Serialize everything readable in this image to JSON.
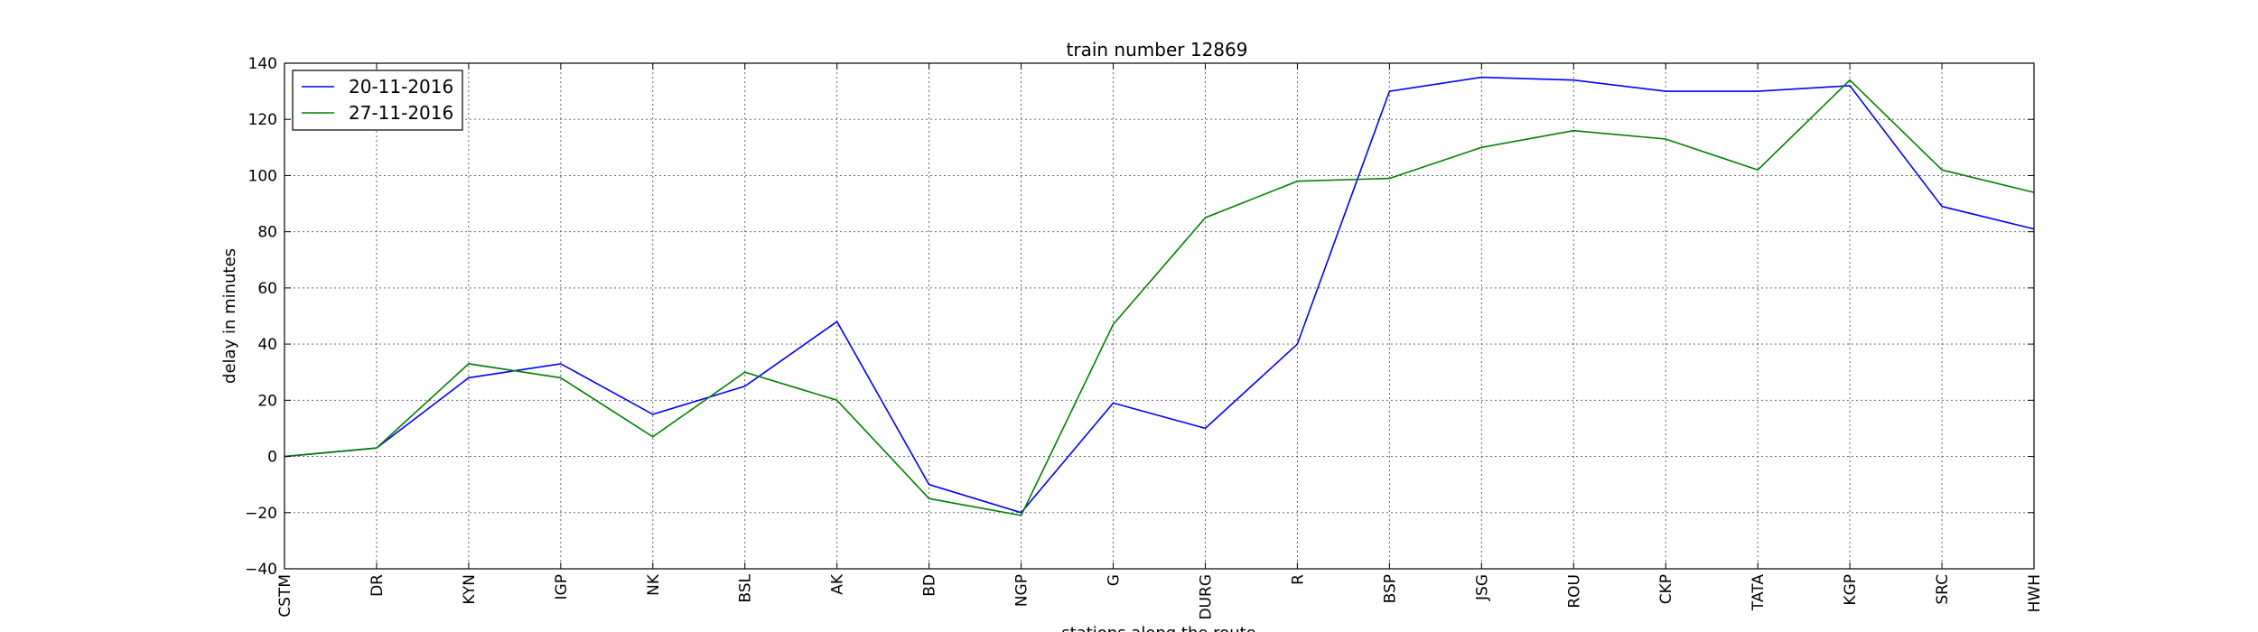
{
  "chart_data": {
    "type": "line",
    "title": "train number 12869",
    "xlabel": "stations along the route",
    "ylabel": "delay in minutes",
    "categories": [
      "CSTM",
      "DR",
      "KYN",
      "IGP",
      "NK",
      "BSL",
      "AK",
      "BD",
      "NGP",
      "G",
      "DURG",
      "R",
      "BSP",
      "JSG",
      "ROU",
      "CKP",
      "TATA",
      "KGP",
      "SRC",
      "HWH"
    ],
    "ylim": [
      -40,
      140
    ],
    "yticks": [
      -40,
      -20,
      0,
      20,
      40,
      60,
      80,
      100,
      120,
      140
    ],
    "ytick_labels": [
      "−40",
      "−20",
      "0",
      "20",
      "40",
      "60",
      "80",
      "100",
      "120",
      "140"
    ],
    "grid": true,
    "legend_position": "top-left",
    "series": [
      {
        "name": "20-11-2016",
        "color": "#0000ff",
        "values": [
          0,
          3,
          28,
          33,
          15,
          25,
          48,
          -10,
          -20,
          19,
          10,
          40,
          130,
          135,
          134,
          130,
          130,
          132,
          89,
          81
        ]
      },
      {
        "name": "27-11-2016",
        "color": "#008000",
        "values": [
          0,
          3,
          33,
          28,
          7,
          30,
          20,
          -15,
          -21,
          47,
          85,
          98,
          99,
          110,
          116,
          113,
          102,
          134,
          102,
          94
        ]
      }
    ]
  }
}
